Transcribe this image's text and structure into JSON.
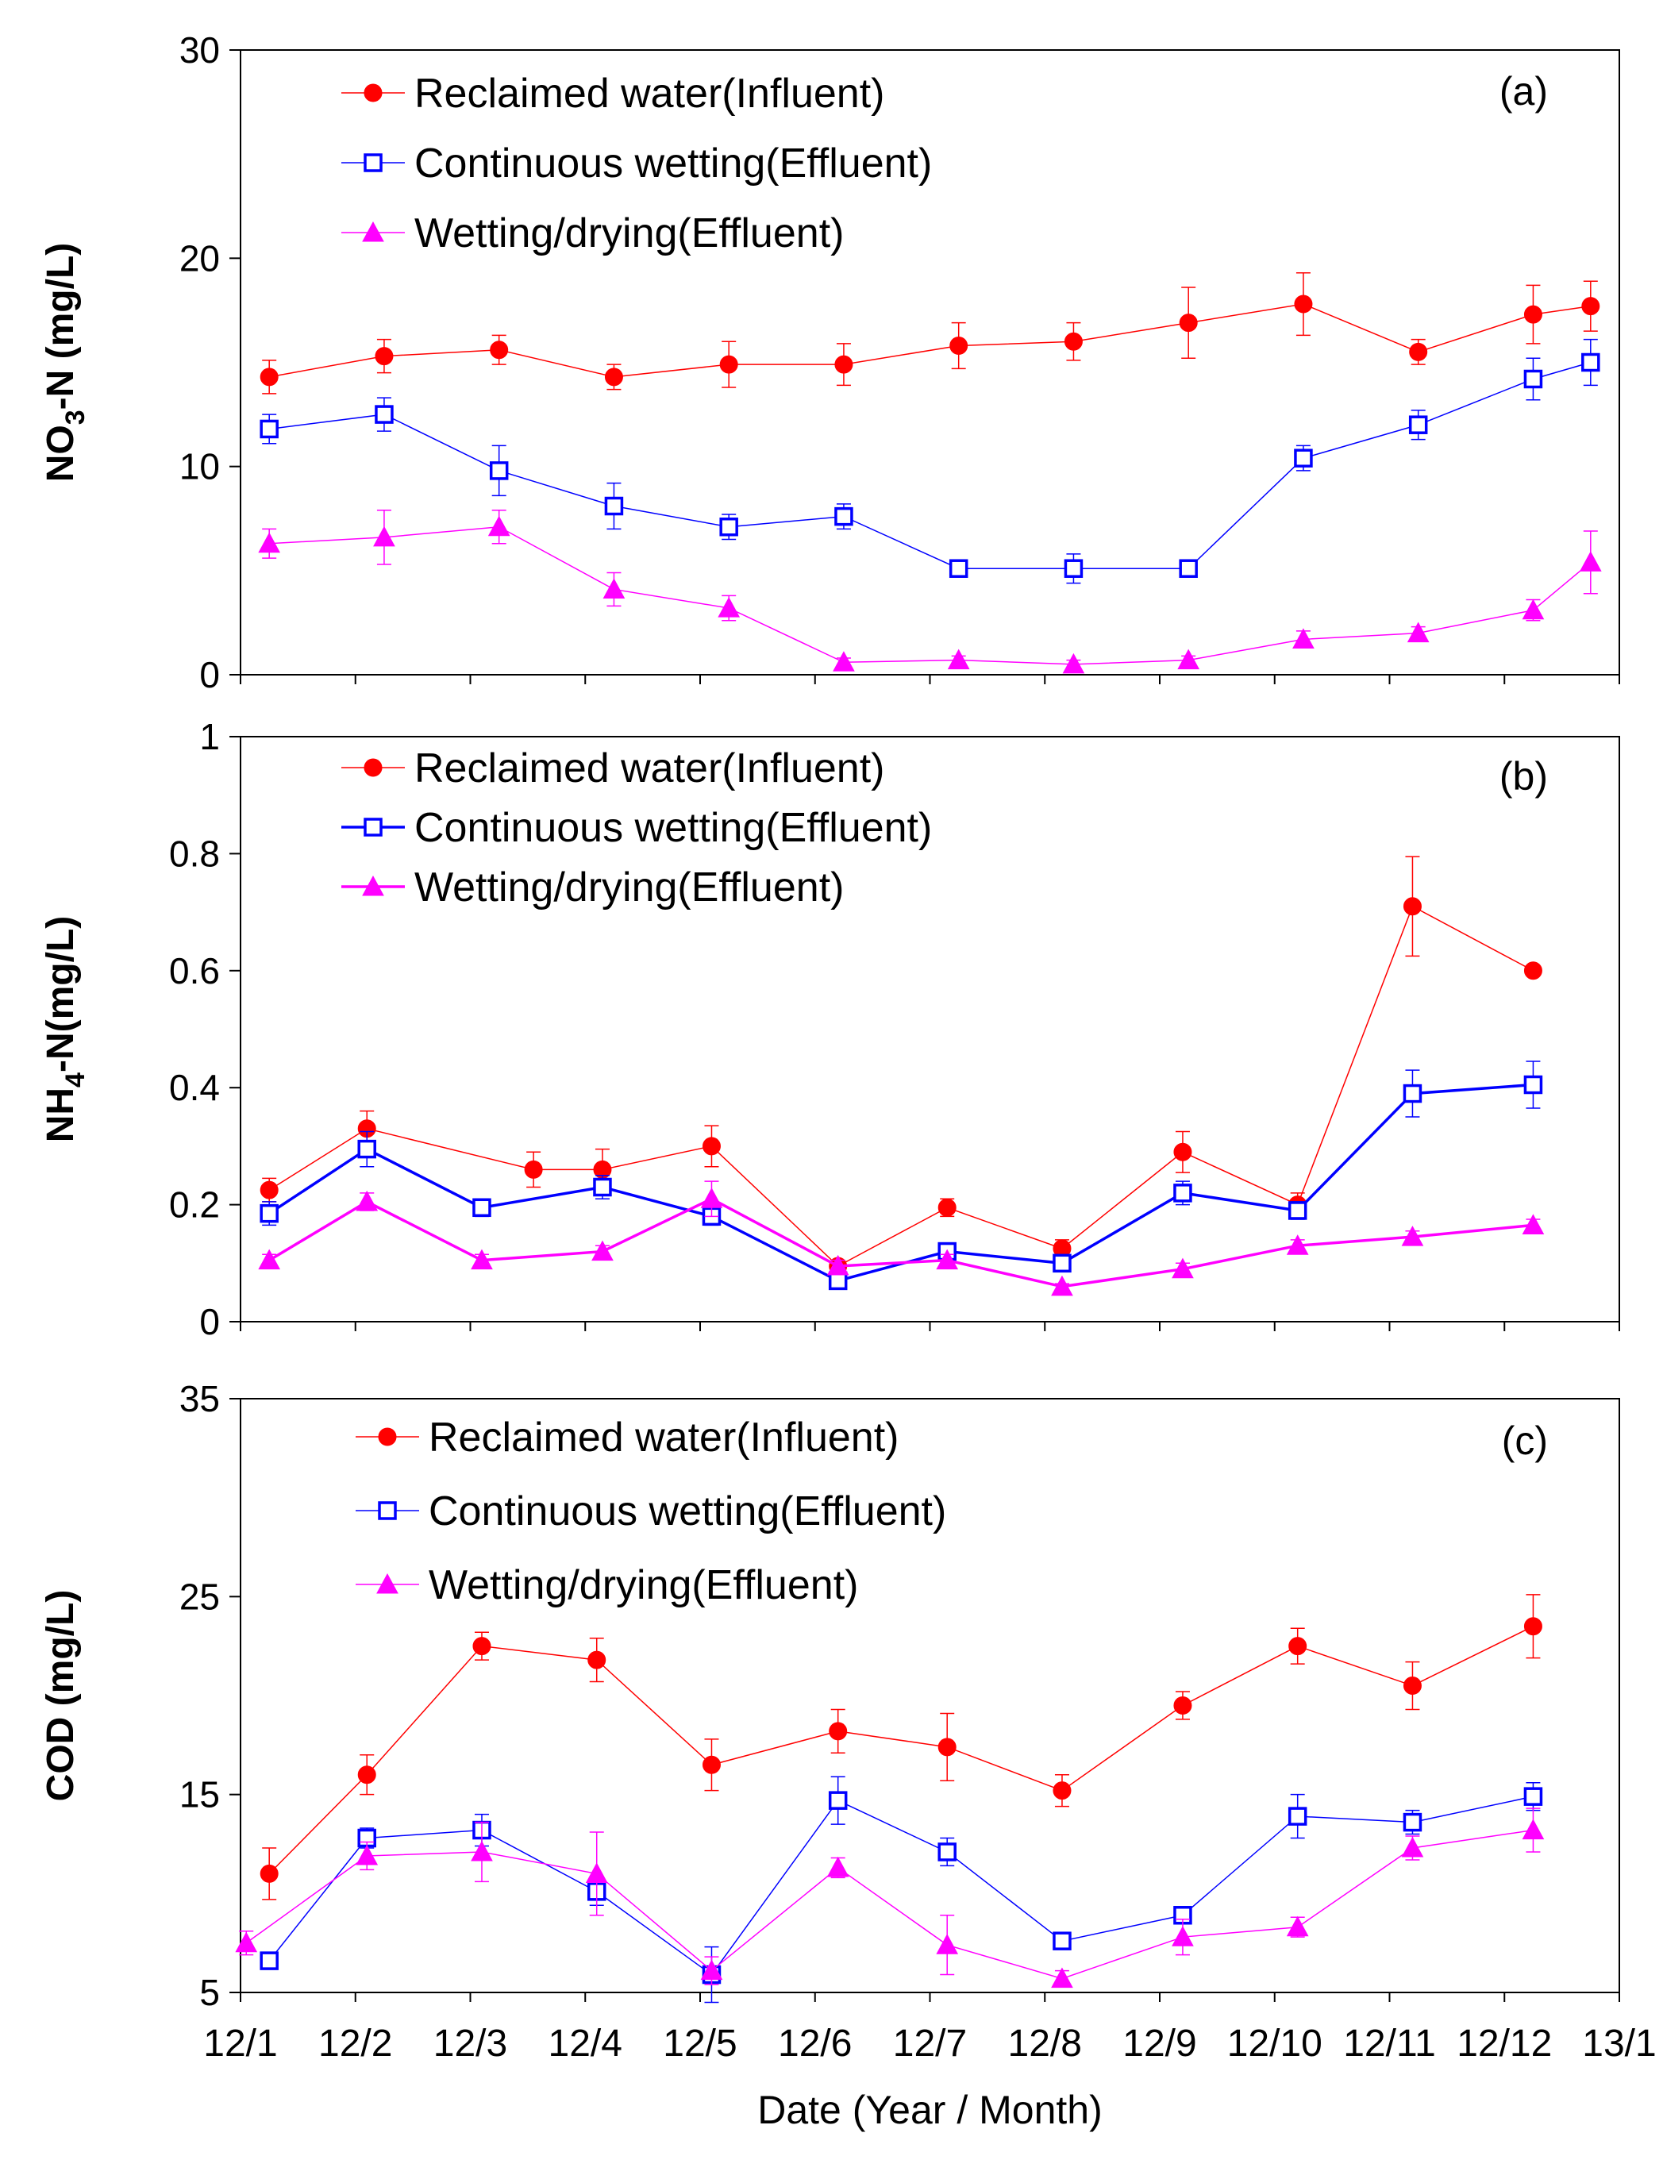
{
  "chart_data": [
    {
      "type": "line",
      "panel_label": "(a)",
      "ylabel": "NO₃-N  (mg/L)",
      "ylabel_parts": {
        "main": "NO",
        "sub": "3",
        "rest": "-N  (mg/L)"
      },
      "ylim": [
        0,
        30
      ],
      "yticks": [
        0,
        10,
        20,
        30
      ],
      "series": [
        {
          "name": "Reclaimed water(Influent)",
          "color": "#ff0000",
          "marker": "circle",
          "fill": "filled",
          "line_width": 1.5,
          "x": [
            12.25,
            13.25,
            14.25,
            15.25,
            16.25,
            17.25,
            18.25,
            19.25,
            20.25,
            21.25,
            22.25,
            23.25,
            23.75
          ],
          "values": [
            14.3,
            15.3,
            15.6,
            14.3,
            14.9,
            14.9,
            15.8,
            16.0,
            16.9,
            17.8,
            15.5,
            17.3,
            17.7
          ],
          "errors": [
            0.8,
            0.8,
            0.7,
            0.6,
            1.1,
            1.0,
            1.1,
            0.9,
            1.7,
            1.5,
            0.6,
            1.4,
            1.2
          ]
        },
        {
          "name": "Continuous wetting(Effluent)",
          "color": "#0000ff",
          "marker": "square",
          "fill": "hollow",
          "line_width": 1.5,
          "x": [
            12.25,
            13.25,
            14.25,
            15.25,
            16.25,
            17.25,
            18.25,
            19.25,
            20.25,
            21.25,
            22.25,
            23.25,
            23.75
          ],
          "values": [
            11.8,
            12.5,
            9.8,
            8.1,
            7.1,
            7.6,
            5.1,
            5.1,
            5.1,
            10.4,
            12.0,
            14.2,
            15.0
          ],
          "errors": [
            0.7,
            0.8,
            1.2,
            1.1,
            0.6,
            0.6,
            0.3,
            0.7,
            0.4,
            0.6,
            0.7,
            1.0,
            1.1
          ]
        },
        {
          "name": "Wetting/drying(Effluent)",
          "color": "#ff00ff",
          "marker": "triangle",
          "fill": "filled",
          "line_width": 1.5,
          "x": [
            12.25,
            13.25,
            14.25,
            15.25,
            16.25,
            17.25,
            18.25,
            19.25,
            20.25,
            21.25,
            22.25,
            23.25,
            23.75
          ],
          "values": [
            6.3,
            6.6,
            7.1,
            4.1,
            3.2,
            0.6,
            0.7,
            0.5,
            0.7,
            1.7,
            2.0,
            3.1,
            5.4
          ],
          "errors": [
            0.7,
            1.3,
            0.8,
            0.8,
            0.6,
            0.2,
            0.2,
            0.2,
            0.2,
            0.4,
            0.3,
            0.5,
            1.5
          ]
        }
      ]
    },
    {
      "type": "line",
      "panel_label": "(b)",
      "ylabel": "NH₄-N(mg/L)",
      "ylabel_parts": {
        "main": "NH",
        "sub": "4",
        "rest": "-N(mg/L)"
      },
      "ylim": [
        0,
        1
      ],
      "yticks": [
        0,
        0.2,
        0.4,
        0.6,
        0.8,
        1
      ],
      "ytick_labels": [
        "0",
        "0.2",
        "0.4",
        "0.6",
        "0.8",
        "1"
      ],
      "series": [
        {
          "name": "Reclaimed water(Influent)",
          "color": "#ff0000",
          "marker": "circle",
          "fill": "filled",
          "line_width": 1.5,
          "x": [
            12.25,
            13.1,
            14.55,
            15.15,
            16.1,
            17.2,
            18.15,
            19.15,
            20.2,
            21.2,
            22.2,
            23.25
          ],
          "values": [
            0.225,
            0.33,
            0.26,
            0.26,
            0.3,
            0.095,
            0.195,
            0.125,
            0.29,
            0.2,
            0.71,
            0.6
          ],
          "errors": [
            0.02,
            0.03,
            0.03,
            0.035,
            0.035,
            0.01,
            0.015,
            0.015,
            0.035,
            0.02,
            0.085,
            0.0
          ]
        },
        {
          "name": "Continuous wetting(Effluent)",
          "color": "#0000ff",
          "marker": "square",
          "fill": "hollow",
          "line_width": 3.5,
          "x": [
            12.25,
            13.1,
            14.1,
            15.15,
            16.1,
            17.2,
            18.15,
            19.15,
            20.2,
            21.2,
            22.2,
            23.25
          ],
          "values": [
            0.185,
            0.295,
            0.195,
            0.23,
            0.18,
            0.07,
            0.12,
            0.1,
            0.22,
            0.19,
            0.39,
            0.405
          ],
          "errors": [
            0.02,
            0.03,
            0.015,
            0.02,
            0.015,
            0.01,
            0.01,
            0.01,
            0.02,
            0.015,
            0.04,
            0.04
          ]
        },
        {
          "name": "Wetting/drying(Effluent)",
          "color": "#ff00ff",
          "marker": "triangle",
          "fill": "filled",
          "line_width": 3.5,
          "x": [
            12.25,
            13.1,
            14.1,
            15.15,
            16.1,
            17.2,
            18.15,
            19.15,
            20.2,
            21.2,
            22.2,
            23.25
          ],
          "values": [
            0.105,
            0.205,
            0.105,
            0.12,
            0.21,
            0.095,
            0.105,
            0.06,
            0.09,
            0.13,
            0.145,
            0.165
          ],
          "errors": [
            0.01,
            0.015,
            0.01,
            0.01,
            0.03,
            0.01,
            0.01,
            0.005,
            0.01,
            0.01,
            0.01,
            0.01
          ]
        }
      ]
    },
    {
      "type": "line",
      "panel_label": "(c)",
      "ylabel": "COD (mg/L)",
      "ylim": [
        5,
        35
      ],
      "yticks": [
        5,
        15,
        25,
        35
      ],
      "xlabel": "Date (Year / Month)",
      "categories": [
        "12/1",
        "12/2",
        "12/3",
        "12/4",
        "12/5",
        "12/6",
        "12/7",
        "12/8",
        "12/9",
        "12/10",
        "12/11",
        "12/12",
        "13/1"
      ],
      "xlim": [
        12,
        24
      ],
      "series": [
        {
          "name": "Reclaimed water(Influent)",
          "color": "#ff0000",
          "marker": "circle",
          "fill": "filled",
          "line_width": 1.5,
          "x": [
            12.25,
            13.1,
            14.1,
            15.1,
            16.1,
            17.2,
            18.15,
            19.15,
            20.2,
            21.2,
            22.2,
            23.25
          ],
          "values": [
            11.0,
            16.0,
            22.5,
            21.8,
            16.5,
            18.2,
            17.4,
            15.2,
            19.5,
            22.5,
            20.5,
            23.5
          ],
          "errors": [
            1.3,
            1.0,
            0.7,
            1.1,
            1.3,
            1.1,
            1.7,
            0.8,
            0.7,
            0.9,
            1.2,
            1.6
          ]
        },
        {
          "name": "Continuous wetting(Effluent)",
          "color": "#0000ff",
          "marker": "square",
          "fill": "hollow",
          "line_width": 1.5,
          "x": [
            12.25,
            13.1,
            14.1,
            15.1,
            16.1,
            17.2,
            18.15,
            19.15,
            20.2,
            21.2,
            22.2,
            23.25
          ],
          "values": [
            6.6,
            12.8,
            13.2,
            10.1,
            5.9,
            14.7,
            12.1,
            7.6,
            8.9,
            13.9,
            13.6,
            14.9
          ],
          "errors": [
            0.3,
            0.5,
            0.8,
            0.7,
            1.4,
            1.2,
            0.7,
            0.3,
            0.3,
            1.1,
            0.6,
            0.7
          ]
        },
        {
          "name": "Wetting/drying(Effluent)",
          "color": "#ff00ff",
          "marker": "triangle",
          "fill": "filled",
          "line_width": 1.5,
          "x": [
            12.05,
            13.1,
            14.1,
            15.1,
            16.1,
            17.2,
            18.15,
            19.15,
            20.2,
            21.2,
            22.2,
            23.25
          ],
          "values": [
            7.5,
            11.9,
            12.1,
            11.0,
            6.1,
            11.3,
            7.4,
            5.7,
            7.8,
            8.3,
            12.3,
            13.2
          ],
          "errors": [
            0.6,
            0.7,
            1.5,
            2.1,
            0.7,
            0.5,
            1.5,
            0.4,
            0.9,
            0.5,
            0.6,
            1.1
          ]
        }
      ]
    }
  ]
}
